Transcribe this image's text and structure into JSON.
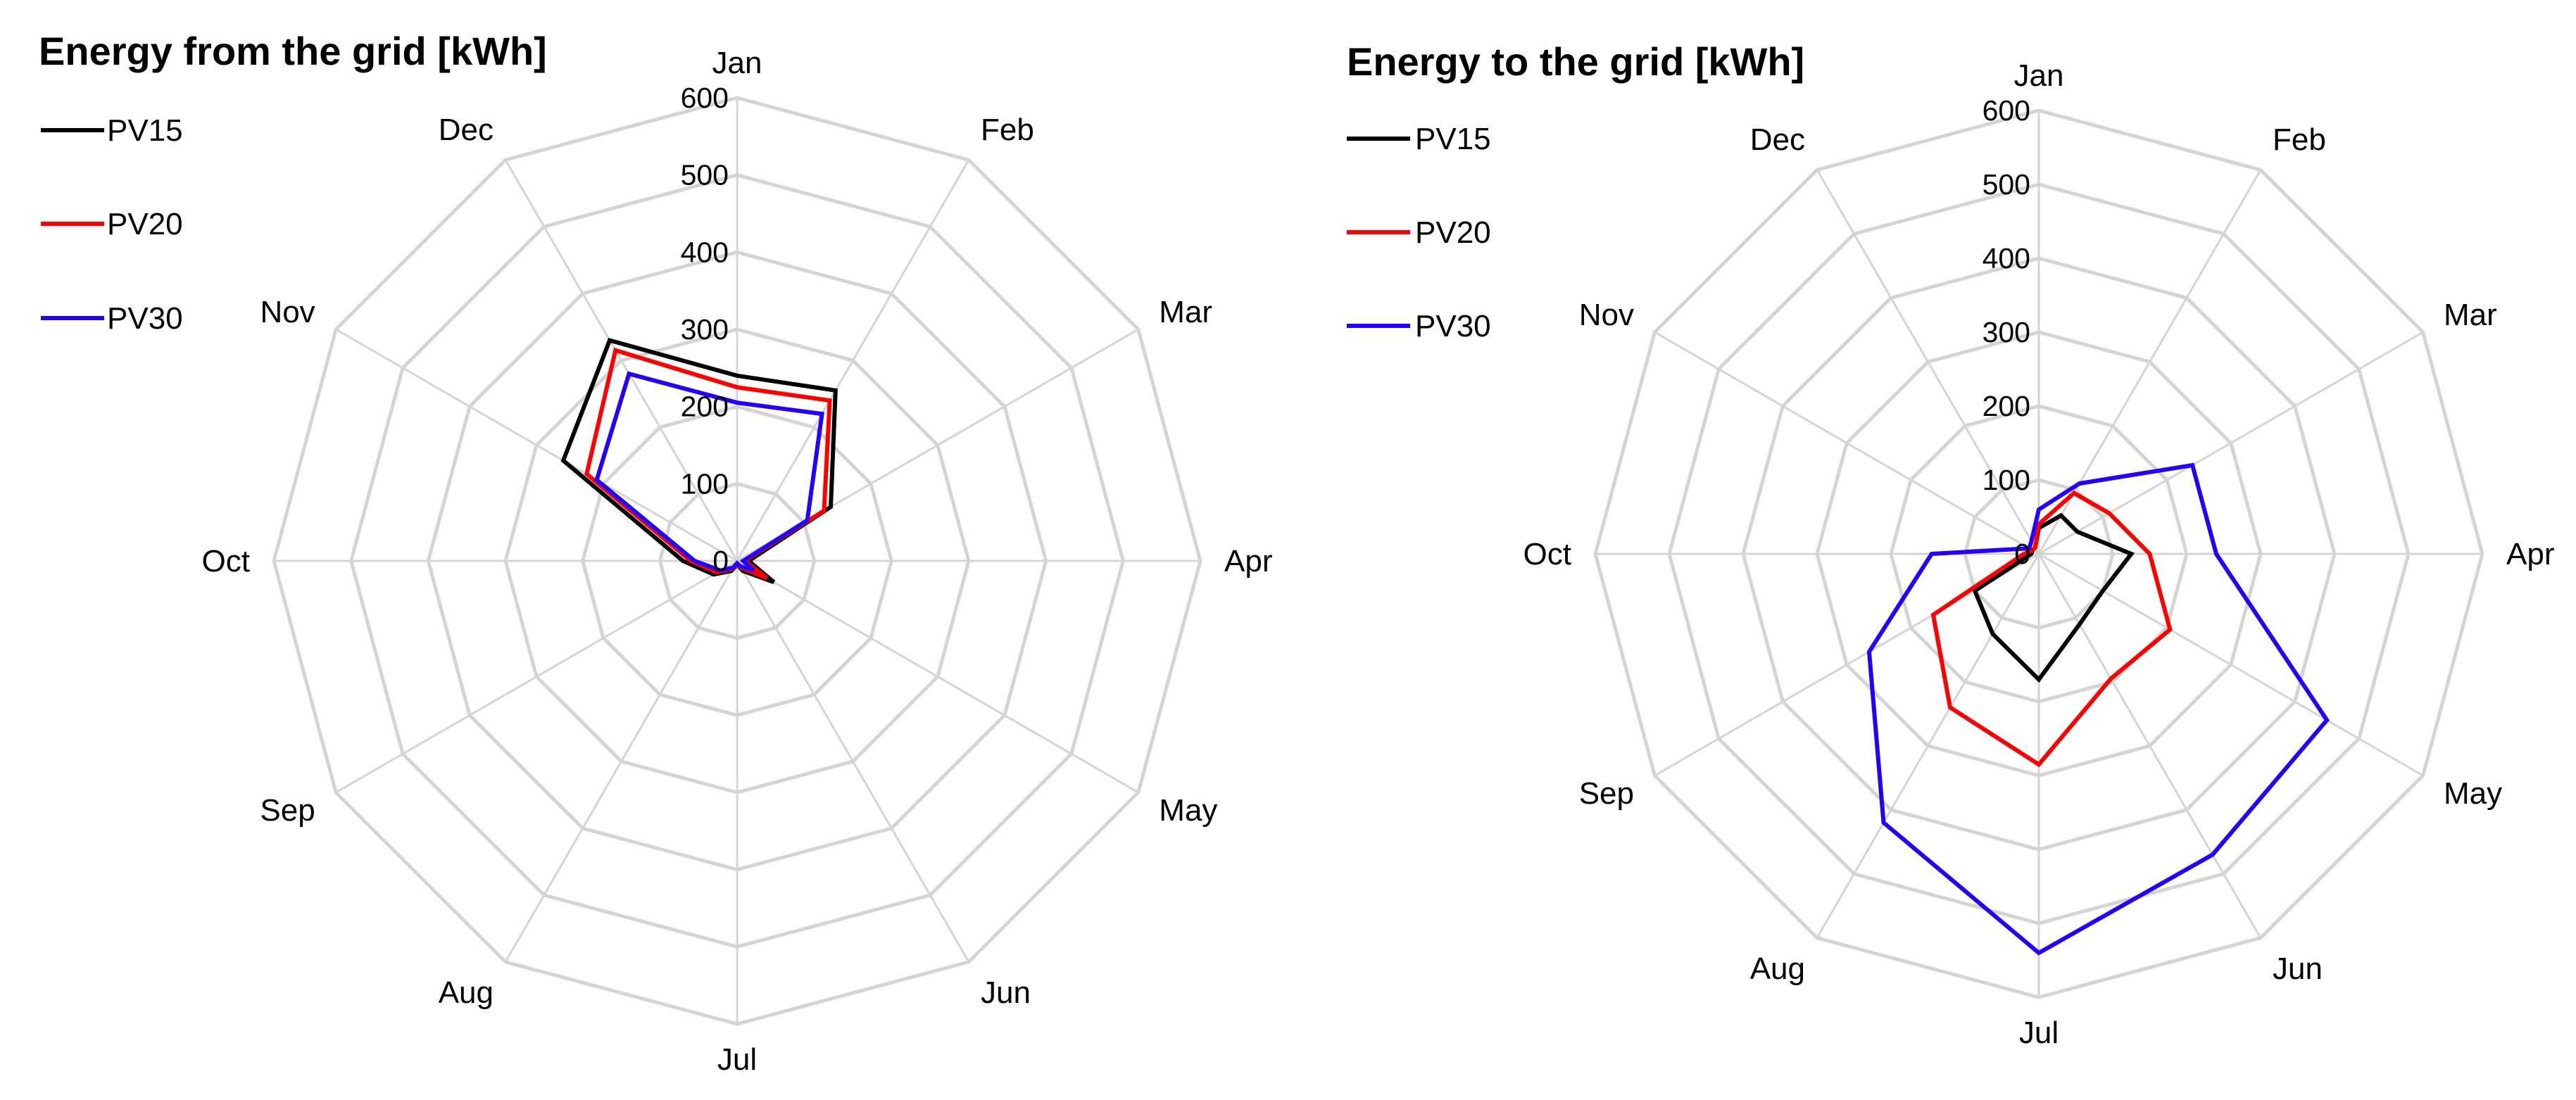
{
  "chart_data": [
    {
      "type": "radar",
      "title": "Energy from the grid [kWh]",
      "categories": [
        "Jan",
        "Feb",
        "Mar",
        "Apr",
        "May",
        "Jun",
        "Jul",
        "Aug",
        "Sep",
        "Oct",
        "Nov",
        "Dec"
      ],
      "r_ticks": [
        "0",
        "100",
        "200",
        "300",
        "400",
        "500",
        "600"
      ],
      "rlim": [
        0,
        600
      ],
      "grid": true,
      "legend_position": "top-left",
      "series": [
        {
          "name": "PV15",
          "color": "#000000",
          "values": [
            240,
            255,
            140,
            15,
            55,
            15,
            5,
            15,
            35,
            70,
            260,
            330
          ]
        },
        {
          "name": "PV20",
          "color": "#ff0000",
          "values": [
            225,
            240,
            130,
            10,
            45,
            10,
            5,
            12,
            30,
            60,
            225,
            315
          ]
        },
        {
          "name": "PV30",
          "color": "#2200ff",
          "values": [
            205,
            220,
            105,
            8,
            25,
            8,
            3,
            10,
            25,
            55,
            210,
            280
          ]
        }
      ]
    },
    {
      "type": "radar",
      "title": "Energy to the grid [kWh]",
      "categories": [
        "Jan",
        "Feb",
        "Mar",
        "Apr",
        "May",
        "Jun",
        "Jul",
        "Aug",
        "Sep",
        "Oct",
        "Nov",
        "Dec"
      ],
      "r_ticks": [
        "0",
        "100",
        "200",
        "300",
        "400",
        "500",
        "600"
      ],
      "rlim": [
        0,
        600
      ],
      "grid": true,
      "legend_position": "top-left",
      "series": [
        {
          "name": "PV15",
          "color": "#000000",
          "values": [
            35,
            60,
            60,
            125,
            100,
            110,
            170,
            125,
            100,
            10,
            10,
            10
          ]
        },
        {
          "name": "PV20",
          "color": "#ff0000",
          "values": [
            40,
            95,
            110,
            150,
            205,
            195,
            285,
            240,
            165,
            20,
            10,
            10
          ]
        },
        {
          "name": "PV30",
          "color": "#2200ff",
          "values": [
            60,
            110,
            240,
            240,
            450,
            470,
            540,
            420,
            265,
            145,
            15,
            20
          ]
        }
      ]
    }
  ]
}
